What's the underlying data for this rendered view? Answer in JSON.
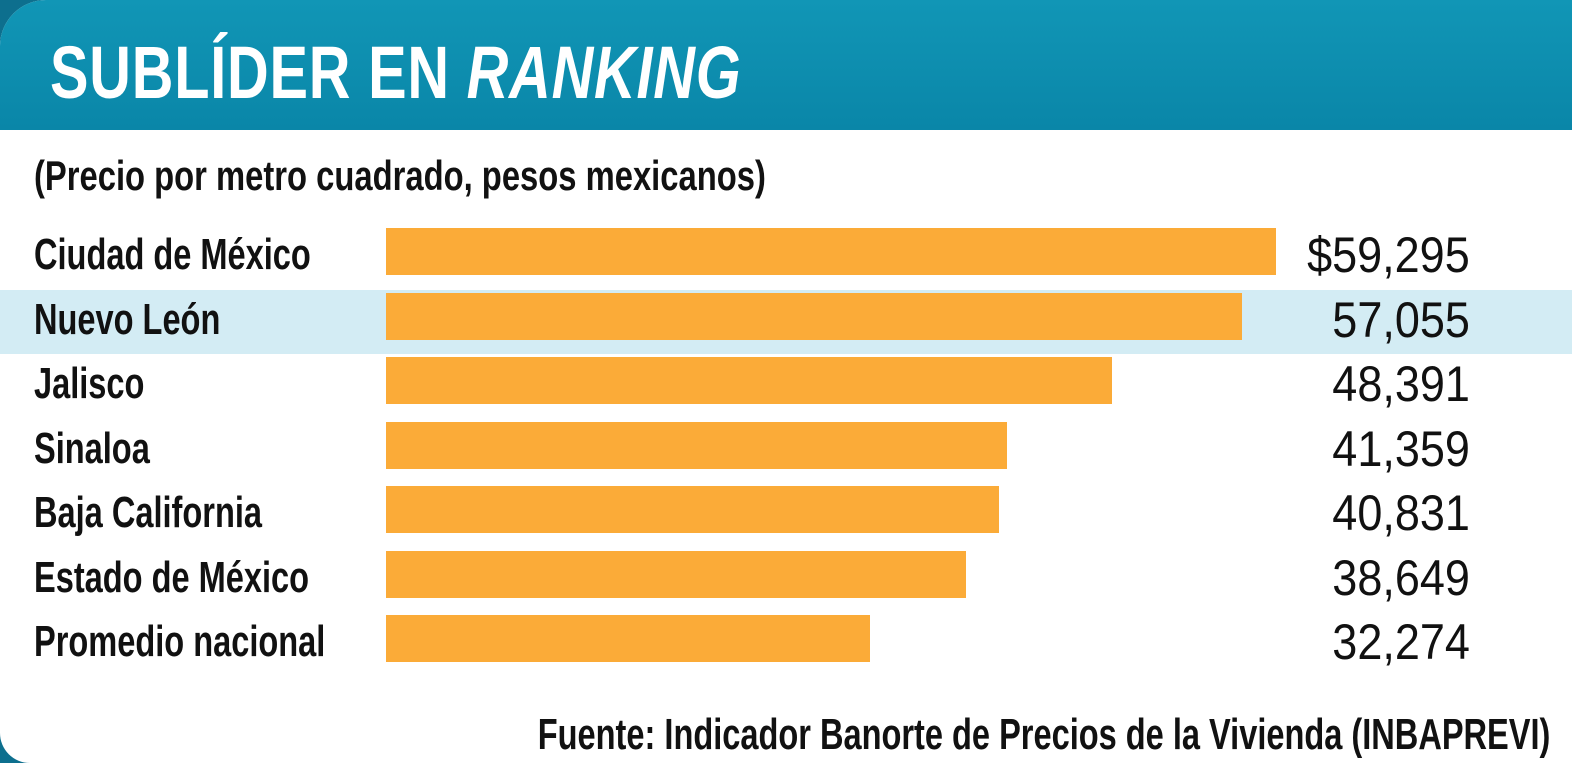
{
  "header": {
    "title_main": "SUBLÍDER EN ",
    "title_emphasis": "RANKING"
  },
  "subtitle": "(Precio por metro cuadrado, pesos mexicanos)",
  "source": "Fuente: Indicador Banorte de Precios de la Vivienda (INBAPREVI)",
  "colors": {
    "header": "#0a86a8",
    "bar": "#fbab38",
    "highlight_row": "#d3ecf4"
  },
  "chart_data": {
    "type": "bar",
    "orientation": "horizontal",
    "title": "SUBLÍDER EN RANKING",
    "subtitle": "(Precio por metro cuadrado, pesos mexicanos)",
    "categories": [
      "Ciudad de México",
      "Nuevo León",
      "Jalisco",
      "Sinaloa",
      "Baja California",
      "Estado de México",
      "Promedio nacional"
    ],
    "values": [
      59295,
      57055,
      48391,
      41359,
      40831,
      38649,
      32274
    ],
    "value_labels": [
      "$59,295",
      "57,055",
      "48,391",
      "41,359",
      "40,831",
      "38,649",
      "32,274"
    ],
    "highlighted_category": "Nuevo León",
    "xlim": [
      0,
      59295
    ],
    "grid": false,
    "legend": "none"
  }
}
